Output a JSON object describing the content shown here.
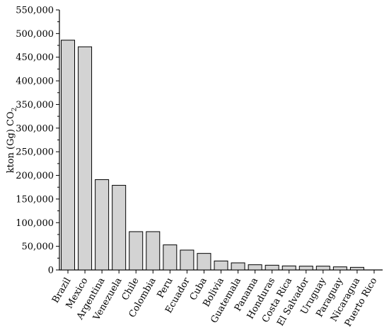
{
  "chart_data": {
    "type": "bar",
    "title": "",
    "xlabel": "",
    "ylabel": {
      "main": "kton (Gg) CO",
      "subscript": "2"
    },
    "ylim": [
      0,
      550000
    ],
    "yticks": [
      0,
      50000,
      100000,
      150000,
      200000,
      250000,
      300000,
      350000,
      400000,
      450000,
      500000,
      550000
    ],
    "ytick_labels": [
      "0",
      "50,000",
      "100,000",
      "150,000",
      "200,000",
      "250,000",
      "300,000",
      "350,000",
      "400,000",
      "450,000",
      "500,000",
      "550,000"
    ],
    "categories": [
      "Brazil",
      "Mexico",
      "Argentina",
      "Venezuela",
      "Chile",
      "Colombia",
      "Peru",
      "Ecuador",
      "Cuba",
      "Bolivia",
      "Guatemala",
      "Panama",
      "Honduras",
      "Costa Rica",
      "El Salvador",
      "Uruguay",
      "Paraguay",
      "Nicaragua",
      "Puerto Rico"
    ],
    "values": [
      486000,
      472000,
      191000,
      179000,
      81000,
      81000,
      53000,
      42000,
      35000,
      19000,
      15000,
      11000,
      10000,
      8500,
      8000,
      8000,
      6500,
      5500,
      0
    ],
    "bar_color": "#d3d3d3",
    "grid": false,
    "legend": "none"
  }
}
